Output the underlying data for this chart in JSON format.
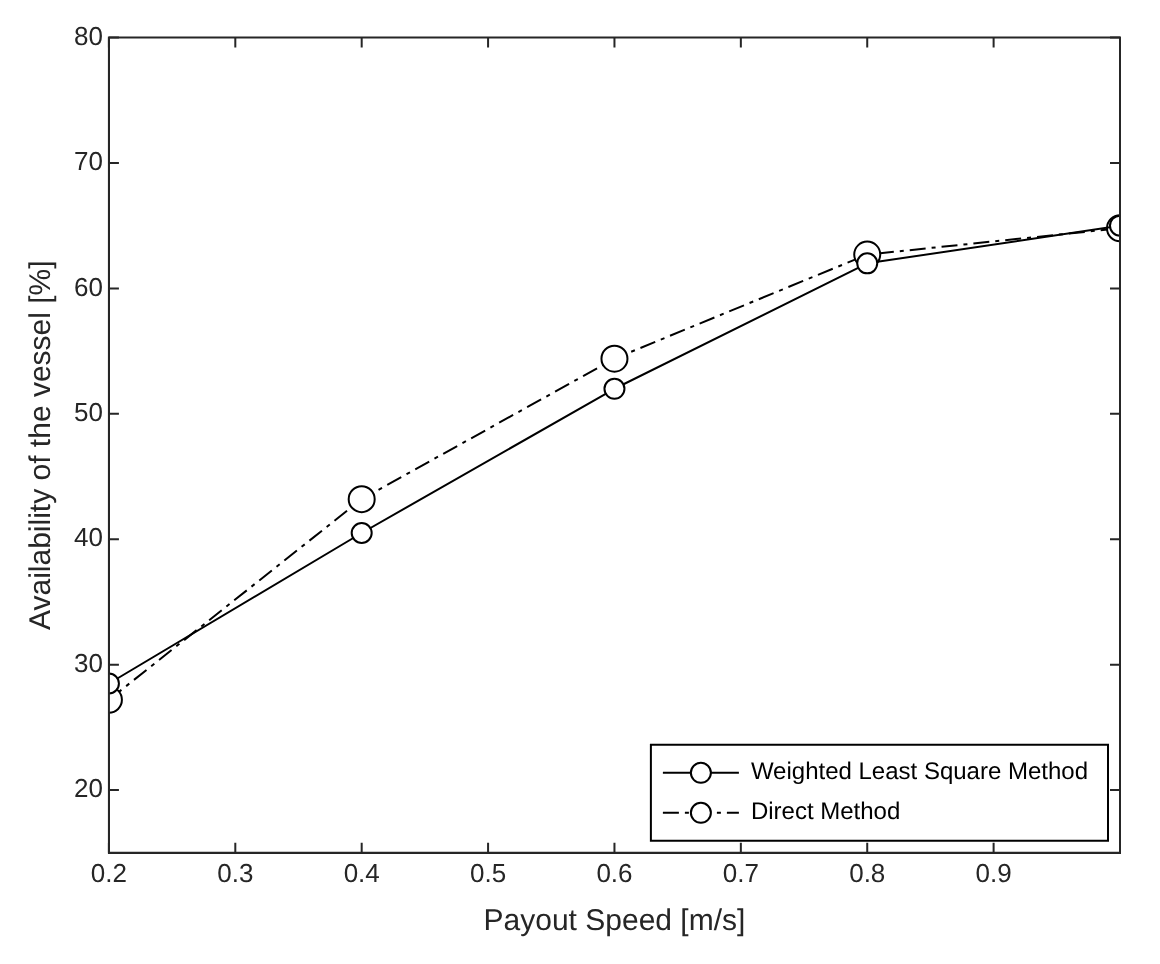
{
  "chart_data": {
    "type": "line",
    "xlabel": "Payout Speed [m/s]",
    "ylabel": "Availability of the vessel [%]",
    "x": [
      0.2,
      0.4,
      0.6,
      0.8,
      1.0
    ],
    "series": [
      {
        "name": "Weighted Least Square Method",
        "color": "#000000",
        "line_style": "solid",
        "values": [
          28.5,
          40.5,
          52,
          62,
          65
        ]
      },
      {
        "name": "Direct Method",
        "color": "#000000",
        "line_style": "dashed",
        "values": [
          27.2,
          43.2,
          54.4,
          62.7,
          64.8
        ]
      }
    ],
    "xlim": [
      0.2,
      1.0
    ],
    "xticks": [
      0.2,
      0.3,
      0.4,
      0.5,
      0.6,
      0.7,
      0.8,
      0.9,
      {
        "value": 1.0,
        "label": null
      }
    ],
    "ylim": [
      15,
      80
    ],
    "yticks": [
      20,
      30,
      40,
      50,
      60,
      70,
      80
    ],
    "grid": false,
    "legend": "bottom right",
    "marker": "circle"
  }
}
